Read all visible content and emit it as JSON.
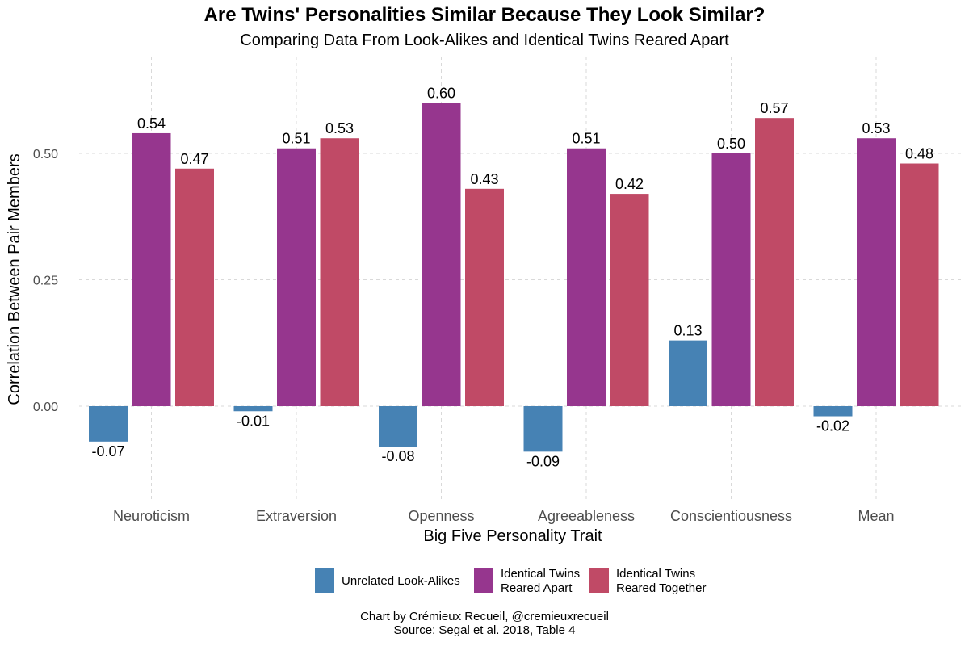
{
  "chart_data": {
    "type": "bar",
    "title": "Are Twins' Personalities Similar Because They Look Similar?",
    "subtitle": "Comparing Data From Look-Alikes and Identical Twins Reared Apart",
    "xlabel": "Big Five Personality Trait",
    "ylabel": "Correlation Between Pair Members",
    "categories": [
      "Neuroticism",
      "Extraversion",
      "Openness",
      "Agreeableness",
      "Conscientiousness",
      "Mean"
    ],
    "series": [
      {
        "name": "Unrelated Look-Alikes",
        "legend_lines": [
          "Unrelated Look-Alikes"
        ],
        "color": "#4682B4",
        "values": [
          -0.07,
          -0.01,
          -0.08,
          -0.09,
          0.13,
          -0.02
        ],
        "labels": [
          "-0.07",
          "-0.01",
          "-0.08",
          "-0.09",
          "0.13",
          "-0.02"
        ]
      },
      {
        "name": "Identical Twins Reared Apart",
        "legend_lines": [
          "Identical Twins",
          "Reared Apart"
        ],
        "color": "#96368E",
        "values": [
          0.54,
          0.51,
          0.6,
          0.51,
          0.5,
          0.53
        ],
        "labels": [
          "0.54",
          "0.51",
          "0.60",
          "0.51",
          "0.50",
          "0.53"
        ]
      },
      {
        "name": "Identical Twins Reared Together",
        "legend_lines": [
          "Identical Twins",
          "Reared Together"
        ],
        "color": "#C04A66",
        "values": [
          0.47,
          0.53,
          0.43,
          0.42,
          0.57,
          0.48
        ],
        "labels": [
          "0.47",
          "0.53",
          "0.43",
          "0.42",
          "0.57",
          "0.48"
        ]
      }
    ],
    "ylim": [
      -0.19,
      0.69
    ],
    "yticks": [
      0.0,
      0.25,
      0.5
    ],
    "ytick_labels": [
      "0.00",
      "0.25",
      "0.50"
    ],
    "grid": true,
    "legend": "bottom"
  },
  "caption": {
    "line1": "Chart by Crémieux Recueil, @cremieuxrecueil",
    "line2": "Source: Segal et al. 2018, Table 4"
  }
}
